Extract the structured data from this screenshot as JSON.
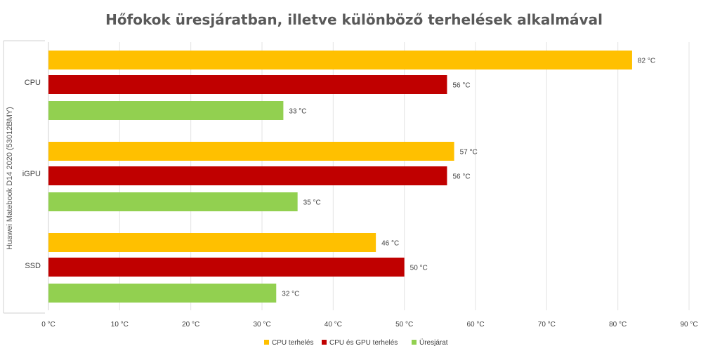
{
  "chart_data": {
    "type": "bar",
    "orientation": "horizontal",
    "title": "Hőfokok üresjáratban, illetve különböző terhelések alkalmával",
    "group_label": "Huawei Matebook D14 2020 (53012BMY)",
    "categories": [
      "CPU",
      "iGPU",
      "SSD"
    ],
    "series": [
      {
        "name": "CPU terhelés",
        "color": "#FFC000",
        "values": [
          82,
          57,
          46
        ],
        "labels": [
          "82 °C",
          "57 °C",
          "46 °C"
        ]
      },
      {
        "name": "CPU és GPU terhelés",
        "color": "#C00000",
        "values": [
          56,
          56,
          50
        ],
        "labels": [
          "56 °C",
          "56 °C",
          "50 °C"
        ]
      },
      {
        "name": "Üresjárat",
        "color": "#92D050",
        "values": [
          33,
          35,
          32
        ],
        "labels": [
          "33 °C",
          "35 °C",
          "32 °C"
        ]
      }
    ],
    "x_ticks": [
      "0 °C",
      "10 °C",
      "20 °C",
      "30 °C",
      "40 °C",
      "50 °C",
      "60 °C",
      "70 °C",
      "80 °C",
      "90 °C"
    ],
    "xlim": [
      0,
      90
    ],
    "xlabel": "",
    "ylabel": "",
    "grid": true,
    "legend_position": "bottom"
  }
}
